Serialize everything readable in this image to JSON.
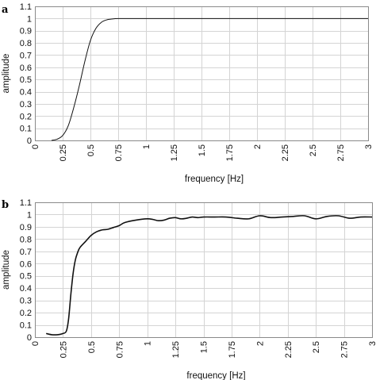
{
  "chart_data": [
    {
      "type": "line",
      "panel_label": "a",
      "xlabel": "frequency [Hz]",
      "ylabel": "amplitude",
      "xlim": [
        0,
        3
      ],
      "ylim": [
        0,
        1.1
      ],
      "x_ticks": [
        "0",
        "0.25",
        "0.5",
        "0.75",
        "1",
        "1.25",
        "1.5",
        "1.75",
        "2",
        "2.25",
        "2.5",
        "2.75",
        "3"
      ],
      "y_ticks": [
        "0",
        "0.1",
        "0.2",
        "0.3",
        "0.4",
        "0.5",
        "0.6",
        "0.7",
        "0.8",
        "0.9",
        "1",
        "1.1"
      ],
      "grid": true,
      "series": [
        {
          "x": [
            0.15,
            0.2,
            0.25,
            0.3,
            0.35,
            0.4,
            0.45,
            0.5,
            0.55,
            0.6,
            0.65,
            0.7,
            0.75,
            0.8,
            1.0,
            1.15
          ],
          "y": [
            0.0,
            0.01,
            0.04,
            0.12,
            0.27,
            0.45,
            0.65,
            0.82,
            0.92,
            0.97,
            0.99,
            0.997,
            1.0,
            1.0,
            1.0,
            1.0
          ]
        },
        {
          "x": [
            1.15,
            3.0
          ],
          "y": [
            1.0,
            1.0
          ]
        }
      ]
    },
    {
      "type": "line",
      "panel_label": "b",
      "xlabel": "frequency [Hz]",
      "ylabel": "amplitude",
      "xlim": [
        0,
        3
      ],
      "ylim": [
        0,
        1.1
      ],
      "x_ticks": [
        "0",
        "0.25",
        "0.5",
        "0.75",
        "1",
        "1.25",
        "1.5",
        "1.75",
        "2",
        "2.25",
        "2.5",
        "2.75",
        "3"
      ],
      "y_ticks": [
        "0",
        "0.1",
        "0.2",
        "0.3",
        "0.4",
        "0.5",
        "0.6",
        "0.7",
        "0.8",
        "0.9",
        "1",
        "1.1"
      ],
      "grid": true,
      "series": [
        {
          "x": [
            0.1,
            0.15,
            0.2,
            0.25,
            0.28,
            0.3,
            0.32,
            0.34,
            0.36,
            0.38,
            0.4,
            0.45,
            0.5,
            0.55,
            0.6,
            0.65,
            0.7,
            0.75,
            0.8,
            0.9,
            1.0,
            1.05,
            1.1,
            1.15,
            1.2,
            1.25,
            1.3,
            1.35,
            1.4,
            1.45,
            1.5,
            1.6,
            1.7,
            1.8,
            1.9,
            2.0,
            2.1,
            2.2,
            2.3,
            2.4,
            2.5,
            2.6,
            2.7,
            2.8,
            2.9,
            3.0
          ],
          "y": [
            0.03,
            0.02,
            0.02,
            0.03,
            0.05,
            0.15,
            0.35,
            0.52,
            0.63,
            0.69,
            0.73,
            0.78,
            0.83,
            0.86,
            0.875,
            0.88,
            0.895,
            0.91,
            0.935,
            0.955,
            0.965,
            0.96,
            0.95,
            0.955,
            0.97,
            0.975,
            0.965,
            0.97,
            0.98,
            0.975,
            0.98,
            0.98,
            0.98,
            0.97,
            0.965,
            0.99,
            0.975,
            0.98,
            0.985,
            0.99,
            0.965,
            0.985,
            0.99,
            0.97,
            0.98,
            0.98
          ]
        }
      ]
    }
  ]
}
